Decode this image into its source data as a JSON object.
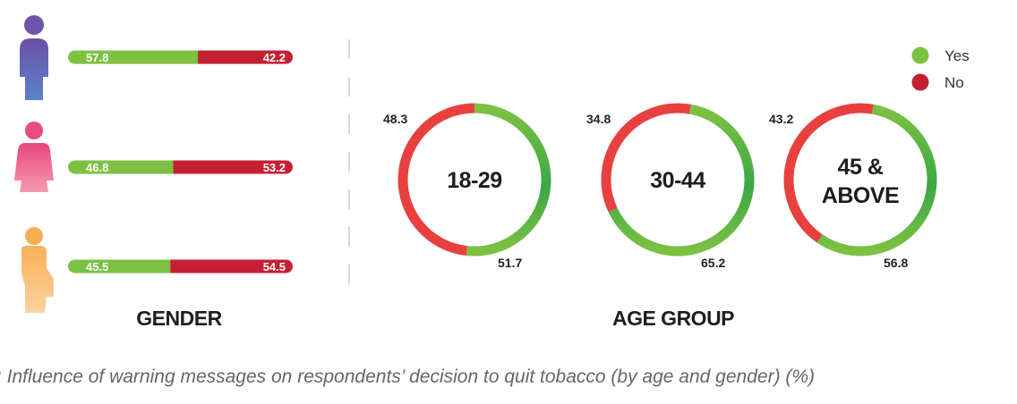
{
  "colors": {
    "yes": "#7dc142",
    "yes_dark": "#3aa845",
    "no_bar": "#c51f33",
    "no_ring": "#e8403f",
    "male": "#6a5fb0",
    "female": "#ea4f86",
    "third": "#f7b35f"
  },
  "legend": [
    {
      "label": "Yes",
      "color": "#7dc142"
    },
    {
      "label": "No",
      "color": "#c51f33"
    }
  ],
  "sections": {
    "gender": "GENDER",
    "age": "AGE GROUP"
  },
  "caption": ": Influence of warning messages on respondents’ decision to quit tobacco (by age and gender) (%)",
  "chart_data": [
    {
      "type": "bar",
      "title": "GENDER",
      "categories": [
        "male-icon",
        "female-icon",
        "third-gender-icon"
      ],
      "series": [
        {
          "name": "Yes",
          "values": [
            57.8,
            46.8,
            45.5
          ]
        },
        {
          "name": "No",
          "values": [
            42.2,
            53.2,
            54.5
          ]
        }
      ],
      "stacked": true,
      "orientation": "horizontal"
    },
    {
      "type": "pie",
      "title": "AGE GROUP",
      "donut": true,
      "categories": [
        "18-29",
        "30-44",
        "45 & ABOVE"
      ],
      "series": [
        {
          "name": "Yes",
          "values": [
            51.7,
            65.2,
            56.8
          ]
        },
        {
          "name": "No",
          "values": [
            48.3,
            34.8,
            43.2
          ]
        }
      ]
    }
  ]
}
